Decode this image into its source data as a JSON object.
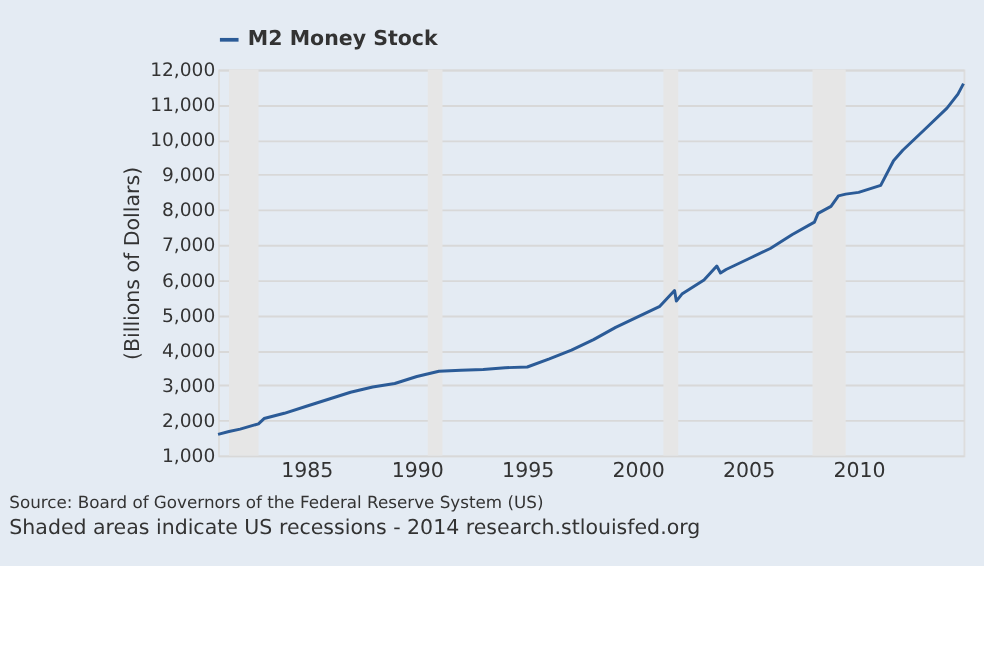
{
  "chart_data": {
    "type": "line",
    "xlabel": null,
    "ylabel": "(Billions of Dollars)",
    "x": [
      "1981-01",
      "1981-07",
      "1982-01",
      "1982-11",
      "1983-02",
      "1984-01",
      "1985-01",
      "1986-01",
      "1987-01",
      "1988-01",
      "1989-01",
      "1990-01",
      "1991-01",
      "1992-01",
      "1993-01",
      "1994-01",
      "1995-01",
      "1996-01",
      "1997-01",
      "1998-01",
      "1999-01",
      "2000-01",
      "2001-01",
      "2001-09",
      "2001-10",
      "2002-01",
      "2003-01",
      "2003-08",
      "2003-10",
      "2004-01",
      "2005-01",
      "2006-01",
      "2007-01",
      "2008-01",
      "2008-03",
      "2008-10",
      "2009-02",
      "2009-06",
      "2010-01",
      "2011-01",
      "2011-08",
      "2012-01",
      "2013-01",
      "2014-01",
      "2014-07",
      "2014-10"
    ],
    "series": [
      {
        "name": "M2 Money Stock",
        "color": "#2b5b97",
        "values": [
          1600,
          1680,
          1750,
          1900,
          2050,
          2200,
          2400,
          2600,
          2800,
          2950,
          3050,
          3250,
          3400,
          3430,
          3450,
          3500,
          3520,
          3750,
          4000,
          4300,
          4650,
          4950,
          5250,
          5700,
          5400,
          5600,
          6000,
          6400,
          6200,
          6300,
          6600,
          6900,
          7300,
          7650,
          7900,
          8100,
          8400,
          8450,
          8500,
          8700,
          9400,
          9700,
          10300,
          10900,
          11300,
          11600
        ]
      }
    ],
    "xlim": [
      "1981-01",
      "2014-10"
    ],
    "xticks": [
      {
        "value": "1985",
        "label": "1985"
      },
      {
        "value": "1990",
        "label": "1990"
      },
      {
        "value": "1995",
        "label": "1995"
      },
      {
        "value": "2000",
        "label": "2000"
      },
      {
        "value": "2005",
        "label": "2005"
      },
      {
        "value": "2010",
        "label": "2010"
      }
    ],
    "ylim": [
      1000,
      12000
    ],
    "yticks": [
      {
        "value": 1000,
        "label": "1,000"
      },
      {
        "value": 2000,
        "label": "2,000"
      },
      {
        "value": 3000,
        "label": "3,000"
      },
      {
        "value": 4000,
        "label": "4,000"
      },
      {
        "value": 5000,
        "label": "5,000"
      },
      {
        "value": 6000,
        "label": "6,000"
      },
      {
        "value": 7000,
        "label": "7,000"
      },
      {
        "value": 8000,
        "label": "8,000"
      },
      {
        "value": 9000,
        "label": "9,000"
      },
      {
        "value": 10000,
        "label": "10,000"
      },
      {
        "value": 11000,
        "label": "11,000"
      },
      {
        "value": 12000,
        "label": "12,000"
      }
    ],
    "bands": [
      {
        "axis": "x",
        "from": "1981-07",
        "to": "1982-11",
        "label": null,
        "color": "#e6e6e6"
      },
      {
        "axis": "x",
        "from": "1990-07",
        "to": "1991-03",
        "label": null,
        "color": "#e6e6e6"
      },
      {
        "axis": "x",
        "from": "2001-03",
        "to": "2001-11",
        "label": null,
        "color": "#e6e6e6"
      },
      {
        "axis": "x",
        "from": "2007-12",
        "to": "2009-06",
        "label": null,
        "color": "#e6e6e6"
      }
    ],
    "grid": "y",
    "legend": "top left",
    "line_style": "solid",
    "marker": "none",
    "annotations": [
      "Source: Board of Governors of the Federal Reserve System (US)",
      "Shaded areas indicate US recessions - 2014 research.stlouisfed.org"
    ]
  }
}
